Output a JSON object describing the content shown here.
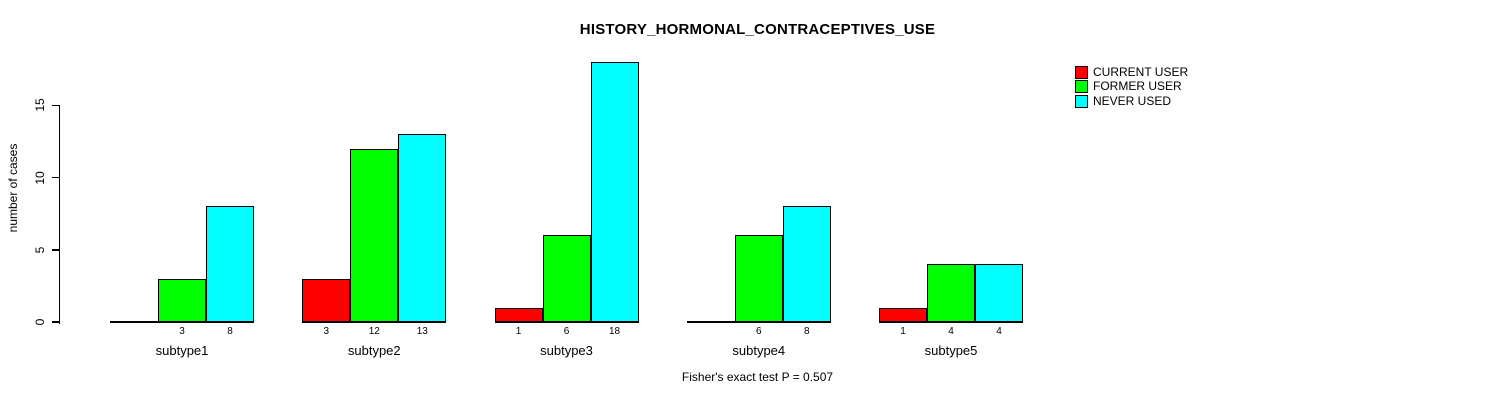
{
  "chart_data": {
    "type": "bar",
    "title": "HISTORY_HORMONAL_CONTRACEPTIVES_USE",
    "ylabel": "number of cases",
    "xlabel": "",
    "categories": [
      "subtype1",
      "subtype2",
      "subtype3",
      "subtype4",
      "subtype5"
    ],
    "series": [
      {
        "name": "CURRENT USER",
        "color": "#ff0000",
        "values": [
          0,
          3,
          1,
          0,
          1
        ]
      },
      {
        "name": "FORMER USER",
        "color": "#00ff00",
        "values": [
          3,
          12,
          6,
          6,
          4
        ]
      },
      {
        "name": "NEVER USED",
        "color": "#00ffff",
        "values": [
          8,
          13,
          18,
          8,
          4
        ]
      }
    ],
    "yticks": [
      0,
      5,
      10,
      15
    ],
    "ylim": [
      0,
      15
    ],
    "value_labels_nonzero_only": true,
    "caption": "Fisher's exact test P = 0.507",
    "legend_position": "top-right",
    "grid": false,
    "background": "#ffffff",
    "bar_border_color": "#000000"
  }
}
